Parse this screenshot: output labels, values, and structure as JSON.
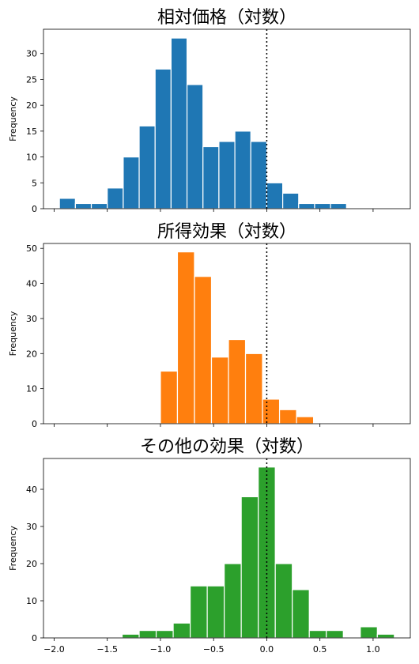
{
  "chart_data": [
    {
      "type": "bar",
      "title": "相対価格（対数）",
      "ylabel": "Frequency",
      "color": "#1f77b4",
      "ylim": [
        0,
        34.7
      ],
      "yticks": [
        0,
        5,
        10,
        15,
        20,
        25,
        30
      ],
      "bins": [
        {
          "x0": -1.95,
          "x1": -1.8,
          "count": 2
        },
        {
          "x0": -1.8,
          "x1": -1.65,
          "count": 1
        },
        {
          "x0": -1.65,
          "x1": -1.5,
          "count": 1
        },
        {
          "x0": -1.5,
          "x1": -1.35,
          "count": 4
        },
        {
          "x0": -1.35,
          "x1": -1.2,
          "count": 10
        },
        {
          "x0": -1.2,
          "x1": -1.05,
          "count": 16
        },
        {
          "x0": -1.05,
          "x1": -0.9,
          "count": 27
        },
        {
          "x0": -0.9,
          "x1": -0.75,
          "count": 33
        },
        {
          "x0": -0.75,
          "x1": -0.6,
          "count": 24
        },
        {
          "x0": -0.6,
          "x1": -0.45,
          "count": 12
        },
        {
          "x0": -0.45,
          "x1": -0.3,
          "count": 13
        },
        {
          "x0": -0.3,
          "x1": -0.15,
          "count": 15
        },
        {
          "x0": -0.15,
          "x1": 0.0,
          "count": 13
        },
        {
          "x0": 0.0,
          "x1": 0.15,
          "count": 5
        },
        {
          "x0": 0.15,
          "x1": 0.3,
          "count": 3
        },
        {
          "x0": 0.3,
          "x1": 0.45,
          "count": 1
        },
        {
          "x0": 0.45,
          "x1": 0.6,
          "count": 1
        },
        {
          "x0": 0.6,
          "x1": 0.75,
          "count": 1
        }
      ]
    },
    {
      "type": "bar",
      "title": "所得効果（対数）",
      "ylabel": "Frequency",
      "color": "#ff7f0e",
      "ylim": [
        0,
        51.4
      ],
      "yticks": [
        0,
        10,
        20,
        30,
        40,
        50
      ],
      "bins": [
        {
          "x0": -1.0,
          "x1": -0.84,
          "count": 15
        },
        {
          "x0": -0.84,
          "x1": -0.68,
          "count": 49
        },
        {
          "x0": -0.68,
          "x1": -0.52,
          "count": 42
        },
        {
          "x0": -0.52,
          "x1": -0.36,
          "count": 19
        },
        {
          "x0": -0.36,
          "x1": -0.2,
          "count": 24
        },
        {
          "x0": -0.2,
          "x1": -0.04,
          "count": 20
        },
        {
          "x0": -0.04,
          "x1": 0.12,
          "count": 7
        },
        {
          "x0": 0.12,
          "x1": 0.28,
          "count": 4
        },
        {
          "x0": 0.28,
          "x1": 0.44,
          "count": 2
        }
      ]
    },
    {
      "type": "bar",
      "title": "その他の効果（対数）",
      "ylabel": "Frequency",
      "color": "#2ca02c",
      "ylim": [
        0,
        48.3
      ],
      "yticks": [
        0,
        10,
        20,
        30,
        40
      ],
      "xticks": [
        "−2.0",
        "−1.5",
        "−1.0",
        "−0.5",
        "0.0",
        "0.5",
        "1.0"
      ],
      "bins": [
        {
          "x0": -1.36,
          "x1": -1.2,
          "count": 1
        },
        {
          "x0": -1.2,
          "x1": -1.04,
          "count": 2
        },
        {
          "x0": -1.04,
          "x1": -0.88,
          "count": 2
        },
        {
          "x0": -0.88,
          "x1": -0.72,
          "count": 4
        },
        {
          "x0": -0.72,
          "x1": -0.56,
          "count": 14
        },
        {
          "x0": -0.56,
          "x1": -0.4,
          "count": 14
        },
        {
          "x0": -0.4,
          "x1": -0.24,
          "count": 20
        },
        {
          "x0": -0.24,
          "x1": -0.08,
          "count": 38
        },
        {
          "x0": -0.08,
          "x1": 0.08,
          "count": 46
        },
        {
          "x0": 0.08,
          "x1": 0.24,
          "count": 20
        },
        {
          "x0": 0.24,
          "x1": 0.4,
          "count": 13
        },
        {
          "x0": 0.4,
          "x1": 0.56,
          "count": 2
        },
        {
          "x0": 0.56,
          "x1": 0.72,
          "count": 2
        },
        {
          "x0": 0.72,
          "x1": 0.88,
          "count": 0
        },
        {
          "x0": 0.88,
          "x1": 1.04,
          "count": 3
        },
        {
          "x0": 1.04,
          "x1": 1.2,
          "count": 1
        }
      ]
    }
  ],
  "shared_x": {
    "xlim": [
      -2.1,
      1.35
    ],
    "tick_values": [
      -2.0,
      -1.5,
      -1.0,
      -0.5,
      0.0,
      0.5,
      1.0
    ],
    "reference_line": 0.0
  }
}
